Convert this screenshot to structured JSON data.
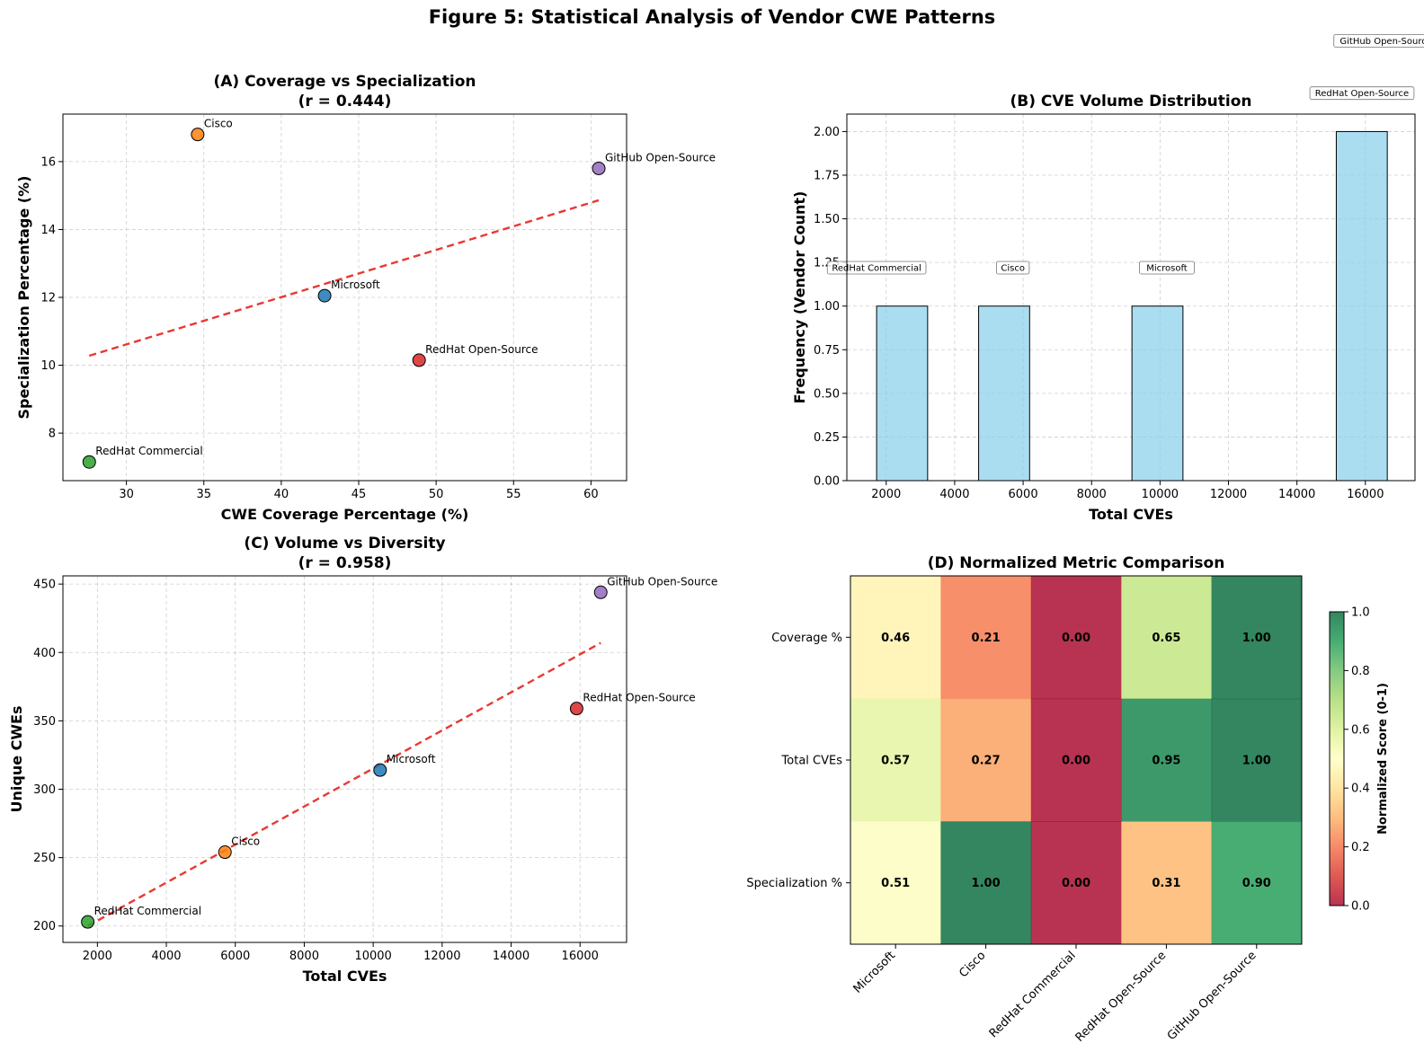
{
  "figure_title": "Figure 5: Statistical Analysis of Vendor CWE Patterns",
  "colors": {
    "Microsoft": "#1f77b4",
    "Cisco": "#ff7f0e",
    "RedHat Commercial": "#2ca02c",
    "RedHat Open-Source": "#d62728",
    "GitHub Open-Source": "#9467bd",
    "trend": "#e8231c",
    "hist_bar": "#87ceeb"
  },
  "chart_data": [
    {
      "id": "A",
      "type": "scatter",
      "title": "(A) Coverage vs Specialization",
      "subtitle": "(r = 0.444)",
      "xlabel": "CWE Coverage Percentage (%)",
      "ylabel": "Specialization Percentage (%)",
      "xlim": [
        25.9,
        62.3
      ],
      "ylim": [
        6.6,
        17.4
      ],
      "xticks": [
        30,
        35,
        40,
        45,
        50,
        55,
        60
      ],
      "yticks": [
        8,
        10,
        12,
        14,
        16
      ],
      "points": [
        {
          "label": "Microsoft",
          "x": 42.8,
          "y": 12.05
        },
        {
          "label": "Cisco",
          "x": 34.6,
          "y": 16.8
        },
        {
          "label": "RedHat Commercial",
          "x": 27.6,
          "y": 7.15
        },
        {
          "label": "RedHat Open-Source",
          "x": 48.9,
          "y": 10.15
        },
        {
          "label": "GitHub Open-Source",
          "x": 60.5,
          "y": 15.8
        }
      ],
      "trend": {
        "x": [
          27.6,
          60.5
        ],
        "y": [
          10.28,
          14.86
        ]
      }
    },
    {
      "id": "B",
      "type": "bar",
      "title": "(B) CVE Volume Distribution",
      "xlabel": "Total CVEs",
      "ylabel": "Frequency (Vendor Count)",
      "xlim": [
        850,
        17450
      ],
      "ylim": [
        0,
        2.1
      ],
      "xticks": [
        2000,
        4000,
        6000,
        8000,
        10000,
        12000,
        14000,
        16000
      ],
      "yticks": [
        0.0,
        0.25,
        0.5,
        0.75,
        1.0,
        1.25,
        1.5,
        1.75,
        2.0
      ],
      "ytick_labels": [
        "0.00",
        "0.25",
        "0.50",
        "0.75",
        "1.00",
        "1.25",
        "1.50",
        "1.75",
        "2.00"
      ],
      "bins": [
        {
          "start": 1720,
          "end": 3210,
          "count": 1
        },
        {
          "start": 4700,
          "end": 6190,
          "count": 1
        },
        {
          "start": 9180,
          "end": 10670,
          "count": 1
        },
        {
          "start": 15150,
          "end": 16640,
          "count": 2
        }
      ],
      "labels": [
        {
          "text": "RedHat Commercial",
          "x": 1720,
          "y": 1.22
        },
        {
          "text": "Cisco",
          "x": 5700,
          "y": 1.22
        },
        {
          "text": "Microsoft",
          "x": 10200,
          "y": 1.22
        },
        {
          "text": "RedHat Open-Source",
          "x": 15900,
          "y": 2.22
        },
        {
          "text": "GitHub Open-Source",
          "x": 16600,
          "y": 2.52
        }
      ]
    },
    {
      "id": "C",
      "type": "scatter",
      "title": "(C) Volume vs Diversity",
      "subtitle": "(r = 0.958)",
      "xlabel": "Total CVEs",
      "ylabel": "Unique CWEs",
      "xlim": [
        1000,
        17350
      ],
      "ylim": [
        188,
        456
      ],
      "xticks": [
        2000,
        4000,
        6000,
        8000,
        10000,
        12000,
        14000,
        16000
      ],
      "yticks": [
        200,
        250,
        300,
        350,
        400,
        450
      ],
      "points": [
        {
          "label": "Microsoft",
          "x": 10200,
          "y": 314
        },
        {
          "label": "Cisco",
          "x": 5700,
          "y": 254
        },
        {
          "label": "RedHat Commercial",
          "x": 1720,
          "y": 203
        },
        {
          "label": "RedHat Open-Source",
          "x": 15900,
          "y": 359
        },
        {
          "label": "GitHub Open-Source",
          "x": 16600,
          "y": 444
        }
      ],
      "trend": {
        "x": [
          1720,
          16600
        ],
        "y": [
          200,
          407
        ]
      }
    },
    {
      "id": "D",
      "type": "heatmap",
      "title": "(D) Normalized Metric Comparison",
      "rows": [
        "Coverage %",
        "Total CVEs",
        "Specialization %"
      ],
      "columns": [
        "Microsoft",
        "Cisco",
        "RedHat Commercial",
        "RedHat Open-Source",
        "GitHub Open-Source"
      ],
      "values": [
        [
          0.46,
          0.21,
          0.0,
          0.65,
          1.0
        ],
        [
          0.57,
          0.27,
          0.0,
          0.95,
          1.0
        ],
        [
          0.51,
          1.0,
          0.0,
          0.31,
          0.9
        ]
      ],
      "colorbar": {
        "label": "Normalized Score (0-1)",
        "ticks": [
          0.0,
          0.2,
          0.4,
          0.6,
          0.8,
          1.0
        ],
        "tick_labels": [
          "0.0",
          "0.2",
          "0.4",
          "0.6",
          "0.8",
          "1.0"
        ]
      }
    }
  ]
}
